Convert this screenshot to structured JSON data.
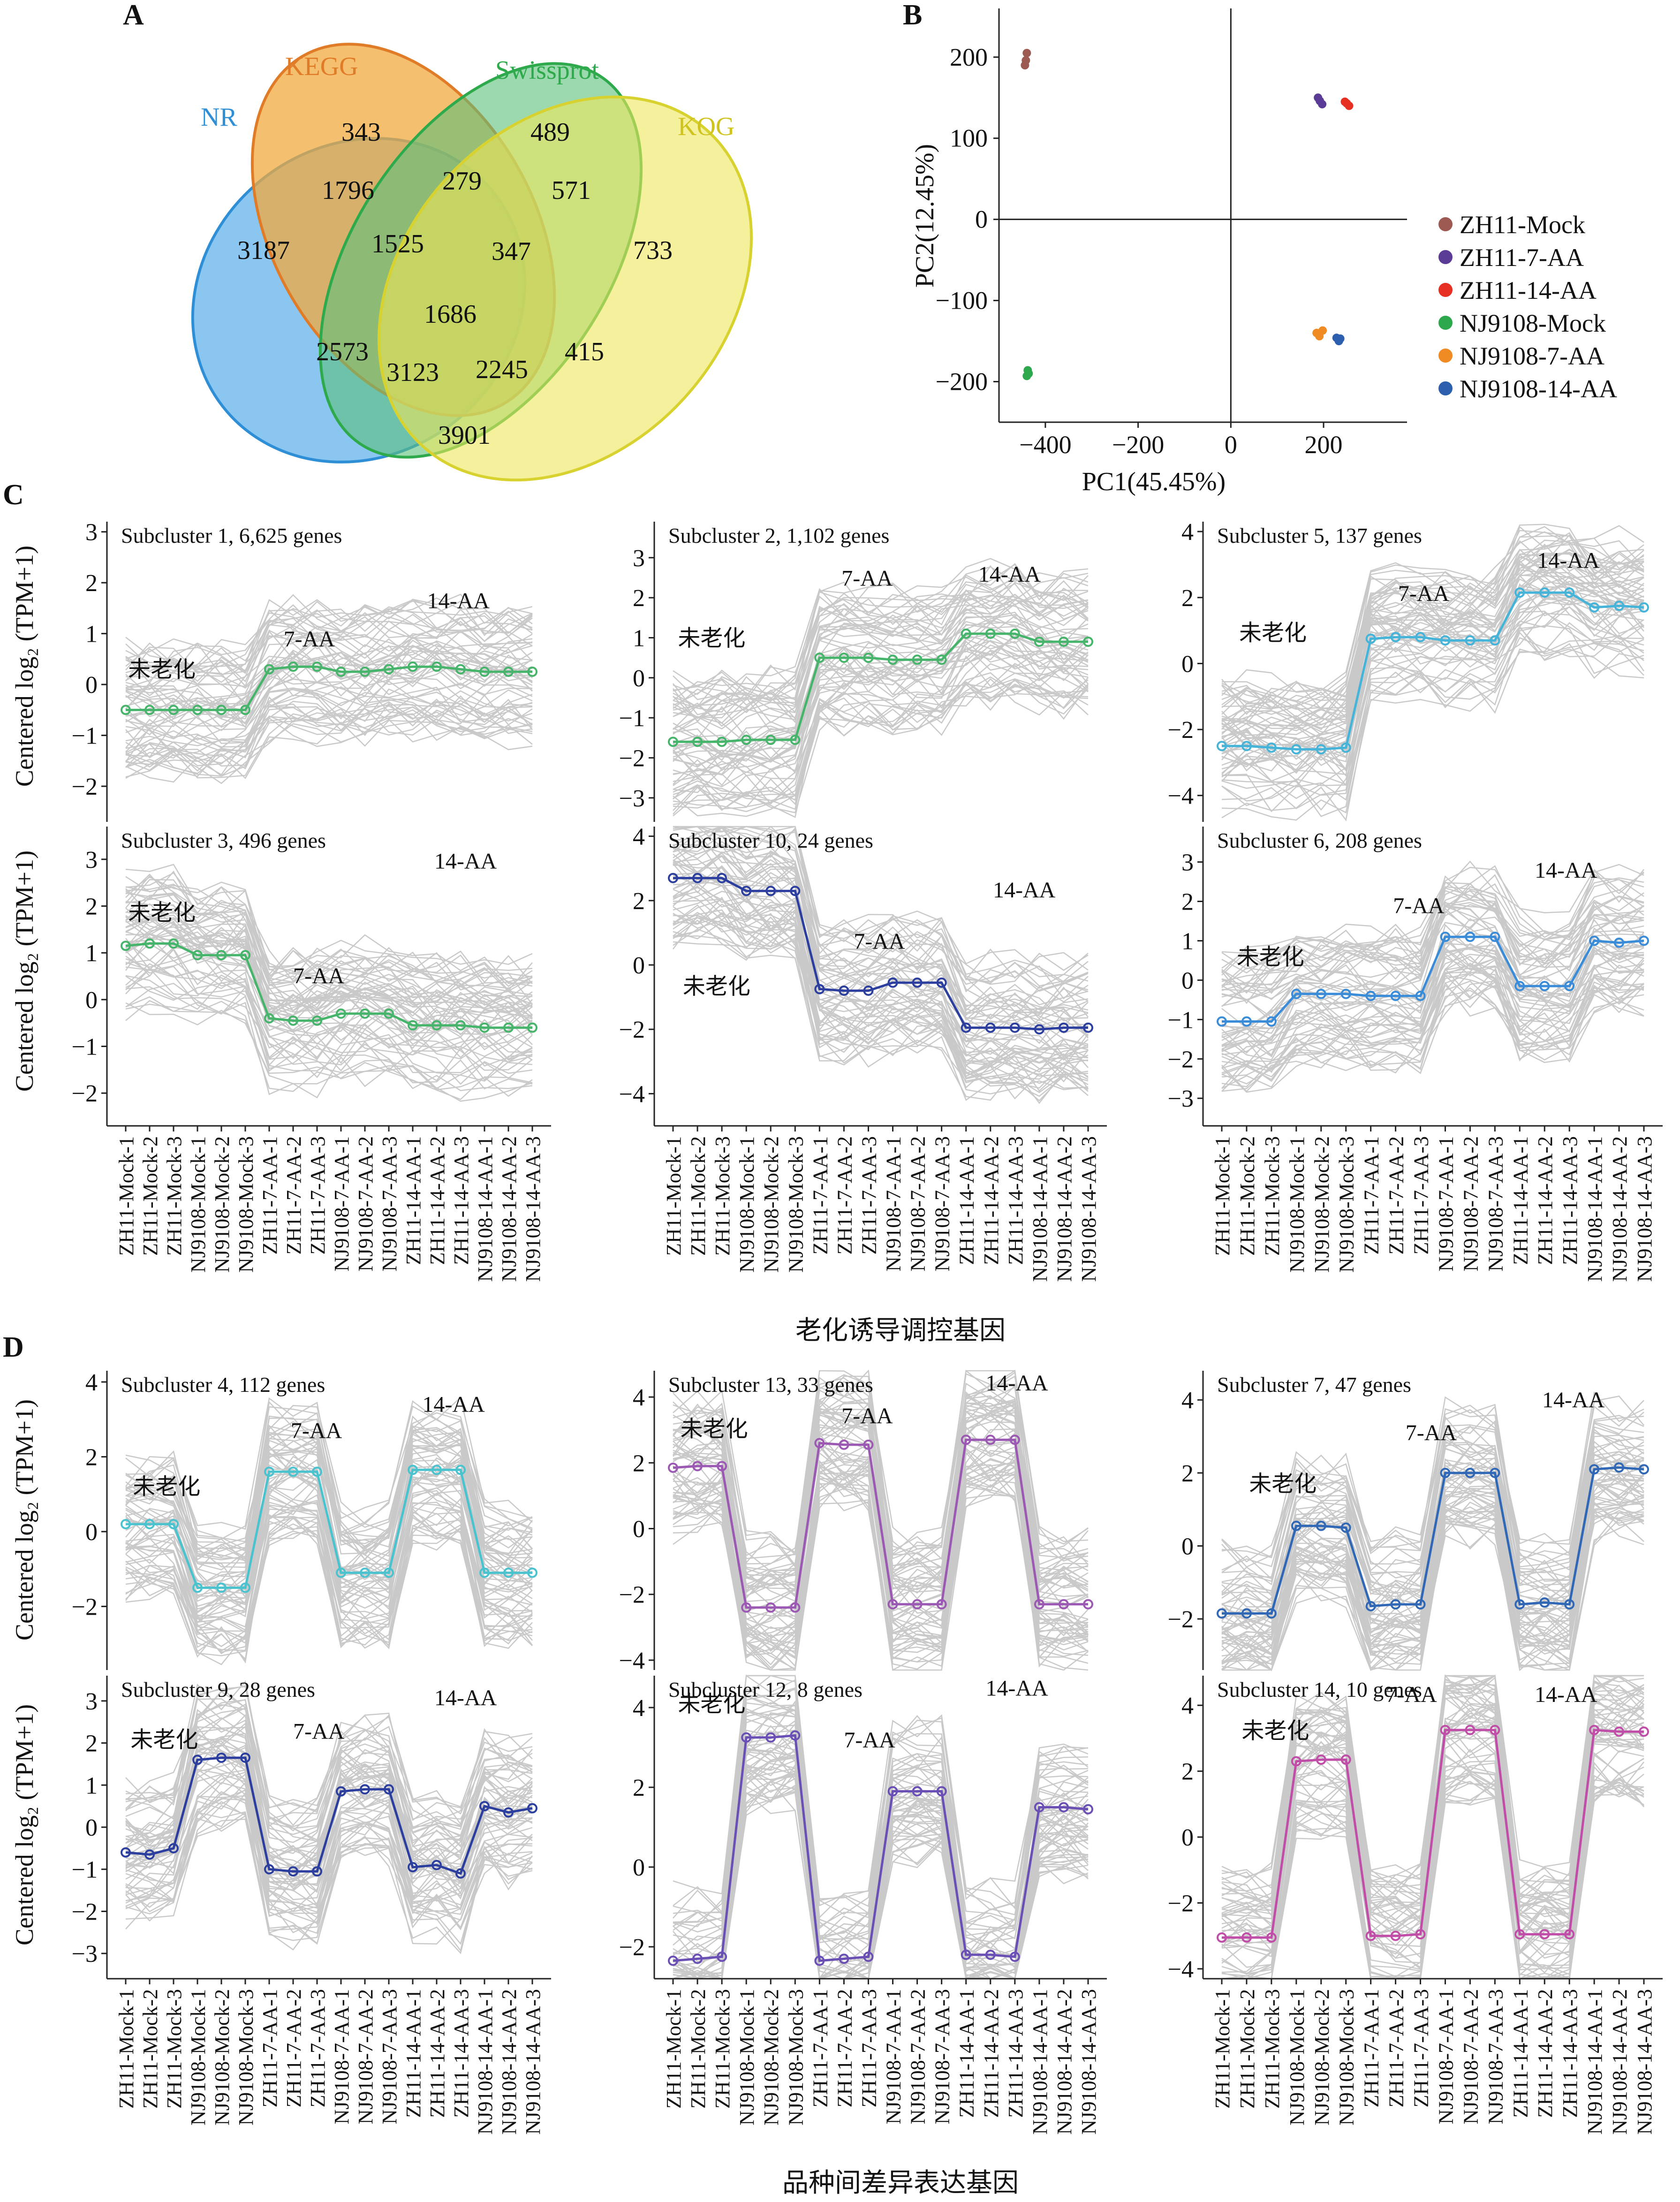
{
  "panel_labels": [
    "A",
    "B",
    "C",
    "D"
  ],
  "venn": {
    "sets": [
      {
        "name": "NR",
        "color": "#2f8fd6",
        "fill": "#63b3ea"
      },
      {
        "name": "KEGG",
        "color": "#e07b28",
        "fill": "#f0a93f"
      },
      {
        "name": "Swissprot",
        "color": "#2eaa4c",
        "fill": "#5cbf7a"
      },
      {
        "name": "KOG",
        "color": "#d8d230",
        "fill": "#ede65a"
      }
    ],
    "regions": [
      "3187",
      "343",
      "489",
      "733",
      "1796",
      "279",
      "571",
      "1525",
      "347",
      "1686",
      "2573",
      "3123",
      "2245",
      "415",
      "3901"
    ]
  },
  "chart_data": [
    {
      "type": "scatter",
      "panel": "B",
      "xlabel": "PC1(45.45%)",
      "ylabel": "PC2(12.45%)",
      "xlim": [
        -500,
        380
      ],
      "ylim": [
        -250,
        260
      ],
      "xticks": [
        -400,
        -200,
        0,
        200
      ],
      "yticks": [
        200,
        100,
        0,
        -100,
        -200
      ],
      "xtick_labels": [
        "−400",
        "−200",
        "0",
        "200"
      ],
      "ytick_labels": [
        "200",
        "100",
        "0",
        "−100",
        "−200"
      ],
      "legend_position": "right",
      "series": [
        {
          "name": "ZH11-Mock",
          "color": "#9c5a52",
          "points": [
            [
              -440,
              205
            ],
            [
              -442,
              196
            ],
            [
              -444,
              190
            ]
          ]
        },
        {
          "name": "ZH11-7-AA",
          "color": "#5a3b96",
          "points": [
            [
              188,
              150
            ],
            [
              192,
              146
            ],
            [
              197,
              142
            ]
          ]
        },
        {
          "name": "ZH11-14-AA",
          "color": "#e53022",
          "points": [
            [
              246,
              145
            ],
            [
              250,
              143
            ],
            [
              255,
              140
            ]
          ]
        },
        {
          "name": "NJ9108-Mock",
          "color": "#2ea84d",
          "points": [
            [
              -438,
              -186
            ],
            [
              -440,
              -193
            ],
            [
              -436,
              -190
            ]
          ]
        },
        {
          "name": "NJ9108-7-AA",
          "color": "#f08a22",
          "points": [
            [
              185,
              -140
            ],
            [
              191,
              -144
            ],
            [
              198,
              -137
            ]
          ]
        },
        {
          "name": "NJ9108-14-AA",
          "color": "#2c5fae",
          "points": [
            [
              228,
              -146
            ],
            [
              233,
              -150
            ],
            [
              236,
              -147
            ]
          ]
        }
      ]
    },
    {
      "type": "line",
      "panel": "C",
      "group": "老化诱导调控基因",
      "title": "Subcluster 1, 6,625 genes",
      "color": "#46b46a",
      "ylim": [
        -2.7,
        3.2
      ],
      "yticks": [
        -2,
        -1,
        0,
        1,
        2,
        3
      ],
      "ytick_labels": [
        "−2",
        "−1",
        "0",
        "1",
        "2",
        "3"
      ],
      "values": [
        -0.5,
        -0.5,
        -0.5,
        -0.5,
        -0.5,
        -0.5,
        0.3,
        0.35,
        0.35,
        0.25,
        0.25,
        0.3,
        0.35,
        0.35,
        0.3,
        0.25,
        0.25,
        0.25
      ],
      "annotations": [
        {
          "text": "未老化",
          "x": 0.1,
          "y": 0.15
        },
        {
          "text": "7-AA",
          "x": 6.6,
          "y": 0.75
        },
        {
          "text": "14-AA",
          "x": 12.6,
          "y": 1.5
        }
      ]
    },
    {
      "type": "line",
      "panel": "C",
      "group": "老化诱导调控基因",
      "title": "Subcluster 2, 1,102 genes",
      "color": "#46b46a",
      "ylim": [
        -3.6,
        3.9
      ],
      "yticks": [
        -3,
        -2,
        -1,
        0,
        1,
        2,
        3
      ],
      "ytick_labels": [
        "−3",
        "−2",
        "−1",
        "0",
        "1",
        "2",
        "3"
      ],
      "values": [
        -1.6,
        -1.6,
        -1.6,
        -1.55,
        -1.55,
        -1.55,
        0.5,
        0.5,
        0.5,
        0.45,
        0.45,
        0.45,
        1.1,
        1.1,
        1.1,
        0.9,
        0.9,
        0.9
      ],
      "annotations": [
        {
          "text": "未老化",
          "x": 0.2,
          "y": 0.8
        },
        {
          "text": "7-AA",
          "x": 6.9,
          "y": 2.3
        },
        {
          "text": "14-AA",
          "x": 12.5,
          "y": 2.4
        }
      ]
    },
    {
      "type": "line",
      "panel": "C",
      "group": "老化诱导调控基因",
      "title": "Subcluster 5, 137 genes",
      "color": "#45b4d8",
      "ylim": [
        -4.8,
        4.3
      ],
      "yticks": [
        -4,
        -2,
        0,
        2,
        4
      ],
      "ytick_labels": [
        "−4",
        "−2",
        "0",
        "2",
        "4"
      ],
      "values": [
        -2.5,
        -2.5,
        -2.55,
        -2.6,
        -2.6,
        -2.55,
        0.75,
        0.8,
        0.8,
        0.7,
        0.7,
        0.7,
        2.15,
        2.15,
        2.15,
        1.7,
        1.75,
        1.7
      ],
      "annotations": [
        {
          "text": "未老化",
          "x": 0.7,
          "y": 0.7
        },
        {
          "text": "7-AA",
          "x": 7.1,
          "y": 1.9
        },
        {
          "text": "14-AA",
          "x": 12.7,
          "y": 2.9
        }
      ]
    },
    {
      "type": "line",
      "panel": "C",
      "group": "老化诱导调控基因",
      "title": "Subcluster 3, 496 genes",
      "color": "#46b46a",
      "ylim": [
        -2.7,
        3.7
      ],
      "yticks": [
        -2,
        -1,
        0,
        1,
        2,
        3
      ],
      "ytick_labels": [
        "−2",
        "−1",
        "0",
        "1",
        "2",
        "3"
      ],
      "values": [
        1.15,
        1.2,
        1.2,
        0.95,
        0.95,
        0.95,
        -0.4,
        -0.45,
        -0.45,
        -0.3,
        -0.3,
        -0.3,
        -0.55,
        -0.55,
        -0.55,
        -0.6,
        -0.6,
        -0.6
      ],
      "annotations": [
        {
          "text": "未老化",
          "x": 0.1,
          "y": 1.7
        },
        {
          "text": "7-AA",
          "x": 7.0,
          "y": 0.35
        },
        {
          "text": "14-AA",
          "x": 12.9,
          "y": 2.8
        }
      ]
    },
    {
      "type": "line",
      "panel": "C",
      "group": "老化诱导调控基因",
      "title": "Subcluster 10, 24 genes",
      "color": "#2d3f9e",
      "ylim": [
        -5.0,
        4.3
      ],
      "yticks": [
        -4,
        -2,
        0,
        2,
        4
      ],
      "ytick_labels": [
        "−4",
        "−2",
        "0",
        "2",
        "4"
      ],
      "values": [
        2.7,
        2.7,
        2.7,
        2.3,
        2.3,
        2.3,
        -0.75,
        -0.8,
        -0.8,
        -0.55,
        -0.55,
        -0.55,
        -1.95,
        -1.95,
        -1.95,
        -2.0,
        -1.95,
        -1.95
      ],
      "annotations": [
        {
          "text": "未老化",
          "x": 0.4,
          "y": -0.9
        },
        {
          "text": "7-AA",
          "x": 7.4,
          "y": 0.5
        },
        {
          "text": "14-AA",
          "x": 13.1,
          "y": 2.1
        }
      ]
    },
    {
      "type": "line",
      "panel": "C",
      "group": "老化诱导调控基因",
      "title": "Subcluster 6, 208 genes",
      "color": "#3a8cd8",
      "ylim": [
        -3.7,
        3.9
      ],
      "yticks": [
        -3,
        -2,
        -1,
        0,
        1,
        2,
        3
      ],
      "ytick_labels": [
        "−3",
        "−2",
        "−1",
        "0",
        "1",
        "2",
        "3"
      ],
      "values": [
        -1.05,
        -1.05,
        -1.05,
        -0.35,
        -0.35,
        -0.35,
        -0.4,
        -0.4,
        -0.4,
        1.1,
        1.1,
        1.1,
        -0.15,
        -0.15,
        -0.15,
        1.0,
        0.95,
        1.0
      ],
      "annotations": [
        {
          "text": "未老化",
          "x": 0.6,
          "y": 0.4
        },
        {
          "text": "7-AA",
          "x": 6.9,
          "y": 1.7
        },
        {
          "text": "14-AA",
          "x": 12.6,
          "y": 2.6
        }
      ]
    },
    {
      "type": "line",
      "panel": "D",
      "group": "品种间差异表达基因",
      "title": "Subcluster 4, 112 genes",
      "color": "#4bc3cf",
      "ylim": [
        -3.7,
        4.3
      ],
      "yticks": [
        -2,
        0,
        2,
        4
      ],
      "ytick_labels": [
        "−2",
        "0",
        "2",
        "4"
      ],
      "values": [
        0.2,
        0.2,
        0.2,
        -1.5,
        -1.5,
        -1.5,
        1.6,
        1.6,
        1.6,
        -1.1,
        -1.1,
        -1.1,
        1.65,
        1.65,
        1.65,
        -1.1,
        -1.1,
        -1.1
      ],
      "annotations": [
        {
          "text": "未老化",
          "x": 0.3,
          "y": 1.0
        },
        {
          "text": "7-AA",
          "x": 6.9,
          "y": 2.5
        },
        {
          "text": "14-AA",
          "x": 12.4,
          "y": 3.2
        }
      ]
    },
    {
      "type": "line",
      "panel": "D",
      "group": "品种间差异表达基因",
      "title": "Subcluster 13, 33 genes",
      "color": "#9b59b3",
      "ylim": [
        -4.3,
        4.8
      ],
      "yticks": [
        -4,
        -2,
        0,
        2,
        4
      ],
      "ytick_labels": [
        "−4",
        "−2",
        "0",
        "2",
        "4"
      ],
      "values": [
        1.85,
        1.9,
        1.9,
        -2.4,
        -2.4,
        -2.4,
        2.6,
        2.55,
        2.55,
        -2.3,
        -2.3,
        -2.3,
        2.7,
        2.7,
        2.7,
        -2.3,
        -2.3,
        -2.3
      ],
      "annotations": [
        {
          "text": "未老化",
          "x": 0.3,
          "y": 2.8
        },
        {
          "text": "7-AA",
          "x": 6.9,
          "y": 3.2
        },
        {
          "text": "14-AA",
          "x": 12.8,
          "y": 4.2
        }
      ]
    },
    {
      "type": "line",
      "panel": "D",
      "group": "品种间差异表达基因",
      "title": "Subcluster 7, 47 genes",
      "color": "#3068b6",
      "ylim": [
        -3.4,
        4.8
      ],
      "yticks": [
        -2,
        0,
        2,
        4
      ],
      "ytick_labels": [
        "−2",
        "0",
        "2",
        "4"
      ],
      "values": [
        -1.85,
        -1.85,
        -1.85,
        0.55,
        0.55,
        0.5,
        -1.65,
        -1.6,
        -1.6,
        2.0,
        2.0,
        2.0,
        -1.6,
        -1.55,
        -1.6,
        2.1,
        2.15,
        2.1
      ],
      "annotations": [
        {
          "text": "未老化",
          "x": 1.1,
          "y": 1.5
        },
        {
          "text": "7-AA",
          "x": 7.4,
          "y": 2.9
        },
        {
          "text": "14-AA",
          "x": 12.9,
          "y": 3.8
        }
      ]
    },
    {
      "type": "line",
      "panel": "D",
      "group": "品种间差异表达基因",
      "title": "Subcluster 9, 28 genes",
      "color": "#2d3f9e",
      "ylim": [
        -3.6,
        3.6
      ],
      "yticks": [
        -3,
        -2,
        -1,
        0,
        1,
        2,
        3
      ],
      "ytick_labels": [
        "−3",
        "−2",
        "−1",
        "0",
        "1",
        "2",
        "3"
      ],
      "values": [
        -0.6,
        -0.65,
        -0.5,
        1.6,
        1.65,
        1.65,
        -1.0,
        -1.05,
        -1.05,
        0.85,
        0.9,
        0.9,
        -0.95,
        -0.9,
        -1.1,
        0.5,
        0.35,
        0.45
      ],
      "annotations": [
        {
          "text": "未老化",
          "x": 0.2,
          "y": 1.9
        },
        {
          "text": "7-AA",
          "x": 7.0,
          "y": 2.1
        },
        {
          "text": "14-AA",
          "x": 12.9,
          "y": 2.9
        }
      ]
    },
    {
      "type": "line",
      "panel": "D",
      "group": "品种间差异表达基因",
      "title": "Subcluster 12, 8 genes",
      "color": "#6a4fb5",
      "ylim": [
        -2.8,
        4.8
      ],
      "yticks": [
        -2,
        0,
        2,
        4
      ],
      "ytick_labels": [
        "−2",
        "0",
        "2",
        "4"
      ],
      "values": [
        -2.35,
        -2.3,
        -2.25,
        3.25,
        3.25,
        3.3,
        -2.35,
        -2.3,
        -2.25,
        1.9,
        1.9,
        1.9,
        -2.2,
        -2.2,
        -2.25,
        1.5,
        1.5,
        1.45
      ],
      "annotations": [
        {
          "text": "未老化",
          "x": 0.2,
          "y": 3.9
        },
        {
          "text": "7-AA",
          "x": 7.0,
          "y": 3.0
        },
        {
          "text": "14-AA",
          "x": 12.8,
          "y": 4.3
        }
      ]
    },
    {
      "type": "line",
      "panel": "D",
      "group": "品种间差异表达基因",
      "title": "Subcluster 14, 10 genes",
      "color": "#c04ea8",
      "ylim": [
        -4.3,
        4.9
      ],
      "yticks": [
        -4,
        -2,
        0,
        2,
        4
      ],
      "ytick_labels": [
        "−4",
        "−2",
        "0",
        "2",
        "4"
      ],
      "values": [
        -3.05,
        -3.05,
        -3.05,
        2.3,
        2.35,
        2.35,
        -3.0,
        -3.0,
        -2.95,
        3.25,
        3.25,
        3.25,
        -2.95,
        -2.95,
        -2.95,
        3.25,
        3.2,
        3.2
      ],
      "annotations": [
        {
          "text": "未老化",
          "x": 0.8,
          "y": 3.0
        },
        {
          "text": "7-AA",
          "x": 6.6,
          "y": 4.1
        },
        {
          "text": "14-AA",
          "x": 12.6,
          "y": 4.1
        }
      ]
    }
  ],
  "shared_ylabel": "Centered log₂ (TPM+1)",
  "samples": [
    "ZH11-Mock-1",
    "ZH11-Mock-2",
    "ZH11-Mock-3",
    "NJ9108-Mock-1",
    "NJ9108-Mock-2",
    "NJ9108-Mock-3",
    "ZH11-7-AA-1",
    "ZH11-7-AA-2",
    "ZH11-7-AA-3",
    "NJ9108-7-AA-1",
    "NJ9108-7-AA-2",
    "NJ9108-7-AA-3",
    "ZH11-14-AA-1",
    "ZH11-14-AA-2",
    "ZH11-14-AA-3",
    "NJ9108-14-AA-1",
    "NJ9108-14-AA-2",
    "NJ9108-14-AA-3"
  ],
  "group_labels": {
    "C": "老化诱导调控基因",
    "D": "品种间差异表达基因"
  }
}
